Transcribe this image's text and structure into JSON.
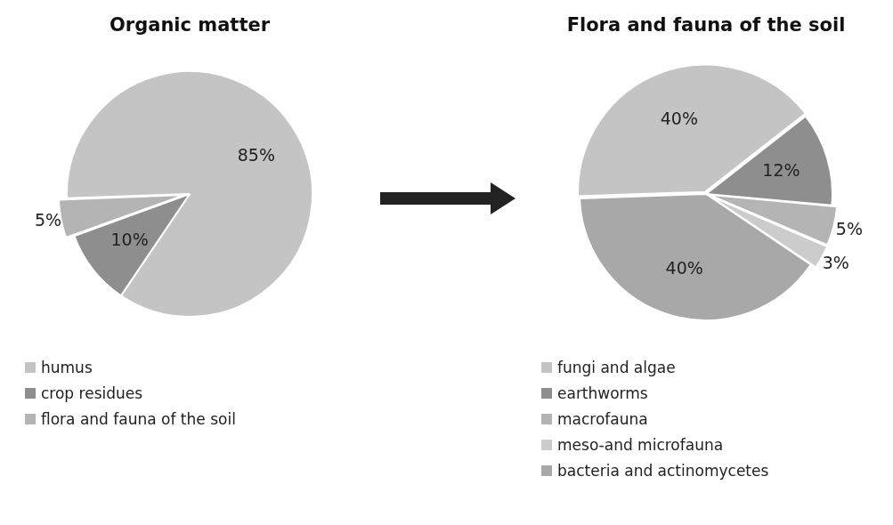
{
  "chart_data": [
    {
      "type": "pie",
      "title": "Organic matter",
      "categories": [
        "humus",
        "crop residues",
        "flora and fauna of the soil"
      ],
      "values": [
        85,
        10,
        5
      ],
      "value_labels": [
        "85%",
        "10%",
        "5%"
      ],
      "colors": [
        "#c4c4c4",
        "#8e8e8e",
        "#b4b4b4"
      ],
      "legend": "bottom"
    },
    {
      "type": "pie",
      "title": "Flora and fauna of the soil",
      "categories": [
        "fungi and algae",
        "earthworms",
        "macrofauna",
        "meso-and microfauna",
        "bacteria and actinomycetes"
      ],
      "values": [
        40,
        12,
        5,
        3,
        40
      ],
      "value_labels": [
        "40%",
        "12%",
        "5%",
        "3%",
        "40%"
      ],
      "colors": [
        "#c4c4c4",
        "#8e8e8e",
        "#b4b4b4",
        "#cccccc",
        "#a8a8a8"
      ],
      "legend": "bottom"
    }
  ]
}
